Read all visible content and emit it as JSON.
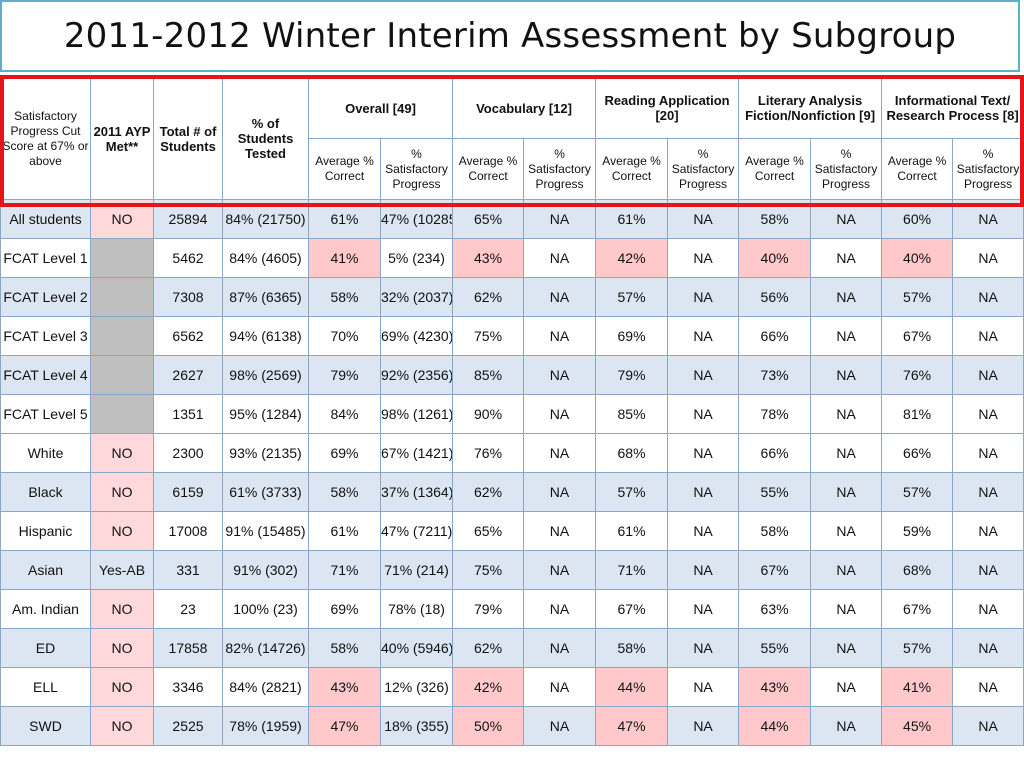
{
  "title": "2011-2012 Winter Interim Assessment by Subgroup",
  "headers": {
    "cut_score": "Satisfactory Progress Cut Score at 67% or above",
    "ayp": "2011 AYP Met**",
    "total": "Total # of Students",
    "pct_tested": "% of Students Tested",
    "groups": [
      "Overall [49]",
      "Vocabulary [12]",
      "Reading Application [20]",
      "Literary Analysis Fiction/Nonfiction [9]",
      "Informational Text/ Research Process [8]"
    ],
    "sub_avg": "Average % Correct",
    "sub_sat": "% Satisfactory Progress"
  },
  "colors": {
    "red_frame": "#e3151a",
    "highlight": "#ffc9cc",
    "row_blue": "#dbe6f2",
    "separator": "#5b8fd0",
    "gray": "#bfbfbf"
  },
  "rows": [
    {
      "label": "All students",
      "ayp": "NO",
      "total": "25894",
      "tested": "84% (21750)",
      "vals": [
        "61%",
        "47% (10285)",
        "65%",
        "NA",
        "61%",
        "NA",
        "58%",
        "NA",
        "60%",
        "NA"
      ]
    },
    {
      "label": "FCAT Level 1",
      "ayp": "",
      "total": "5462",
      "tested": "84% (4605)",
      "vals": [
        "41%",
        "5% (234)",
        "43%",
        "NA",
        "42%",
        "NA",
        "40%",
        "NA",
        "40%",
        "NA"
      ]
    },
    {
      "label": "FCAT Level 2",
      "ayp": "",
      "total": "7308",
      "tested": "87% (6365)",
      "vals": [
        "58%",
        "32% (2037)",
        "62%",
        "NA",
        "57%",
        "NA",
        "56%",
        "NA",
        "57%",
        "NA"
      ]
    },
    {
      "label": "FCAT Level 3",
      "ayp": "",
      "total": "6562",
      "tested": "94% (6138)",
      "vals": [
        "70%",
        "69% (4230)",
        "75%",
        "NA",
        "69%",
        "NA",
        "66%",
        "NA",
        "67%",
        "NA"
      ]
    },
    {
      "label": "FCAT Level 4",
      "ayp": "",
      "total": "2627",
      "tested": "98% (2569)",
      "vals": [
        "79%",
        "92% (2356)",
        "85%",
        "NA",
        "79%",
        "NA",
        "73%",
        "NA",
        "76%",
        "NA"
      ]
    },
    {
      "label": "FCAT Level 5",
      "ayp": "",
      "total": "1351",
      "tested": "95% (1284)",
      "vals": [
        "84%",
        "98% (1261)",
        "90%",
        "NA",
        "85%",
        "NA",
        "78%",
        "NA",
        "81%",
        "NA"
      ]
    },
    {
      "label": "White",
      "ayp": "NO",
      "total": "2300",
      "tested": "93% (2135)",
      "vals": [
        "69%",
        "67% (1421)",
        "76%",
        "NA",
        "68%",
        "NA",
        "66%",
        "NA",
        "66%",
        "NA"
      ]
    },
    {
      "label": "Black",
      "ayp": "NO",
      "total": "6159",
      "tested": "61% (3733)",
      "vals": [
        "58%",
        "37% (1364)",
        "62%",
        "NA",
        "57%",
        "NA",
        "55%",
        "NA",
        "57%",
        "NA"
      ]
    },
    {
      "label": "Hispanic",
      "ayp": "NO",
      "total": "17008",
      "tested": "91% (15485)",
      "vals": [
        "61%",
        "47% (7211)",
        "65%",
        "NA",
        "61%",
        "NA",
        "58%",
        "NA",
        "59%",
        "NA"
      ]
    },
    {
      "label": "Asian",
      "ayp": "Yes-AB",
      "total": "331",
      "tested": "91% (302)",
      "vals": [
        "71%",
        "71% (214)",
        "75%",
        "NA",
        "71%",
        "NA",
        "67%",
        "NA",
        "68%",
        "NA"
      ]
    },
    {
      "label": "Am. Indian",
      "ayp": "NO",
      "total": "23",
      "tested": "100% (23)",
      "vals": [
        "69%",
        "78% (18)",
        "79%",
        "NA",
        "67%",
        "NA",
        "63%",
        "NA",
        "67%",
        "NA"
      ]
    },
    {
      "label": "ED",
      "ayp": "NO",
      "total": "17858",
      "tested": "82% (14726)",
      "vals": [
        "58%",
        "40% (5946)",
        "62%",
        "NA",
        "58%",
        "NA",
        "55%",
        "NA",
        "57%",
        "NA"
      ]
    },
    {
      "label": "ELL",
      "ayp": "NO",
      "total": "3346",
      "tested": "84% (2821)",
      "vals": [
        "43%",
        "12% (326)",
        "42%",
        "NA",
        "44%",
        "NA",
        "43%",
        "NA",
        "41%",
        "NA"
      ]
    },
    {
      "label": "SWD",
      "ayp": "NO",
      "total": "2525",
      "tested": "78% (1959)",
      "vals": [
        "47%",
        "18% (355)",
        "50%",
        "NA",
        "47%",
        "NA",
        "44%",
        "NA",
        "45%",
        "NA"
      ]
    }
  ]
}
